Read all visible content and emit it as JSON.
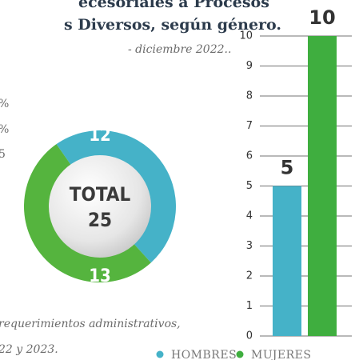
{
  "text": {
    "title_line1": "ecesoriales a Procesos",
    "title_line2": "s Diversos, según género.",
    "subtitle": "- diciembre 2022..",
    "left_fragments": [
      "%",
      "%",
      "5"
    ],
    "footnote_line1": "requerimientos administrativos,",
    "footnote_line2": "22 y 2023."
  },
  "chart_data": [
    {
      "type": "donut",
      "center_label": "TOTAL",
      "total": 25,
      "values": [
        12,
        13
      ],
      "colors": [
        "#45b2c8",
        "#55b43e"
      ]
    },
    {
      "type": "bar",
      "series": [
        {
          "name": "HOMBRES",
          "color": "#45b2c8",
          "values": [
            5
          ]
        },
        {
          "name": "MUJERES",
          "color": "#3fae3f",
          "values": [
            10
          ]
        }
      ],
      "ylim": [
        0,
        10
      ],
      "yticks": [
        0,
        1,
        2,
        3,
        4,
        5,
        6,
        7,
        8,
        9,
        10
      ],
      "grid": true
    }
  ]
}
